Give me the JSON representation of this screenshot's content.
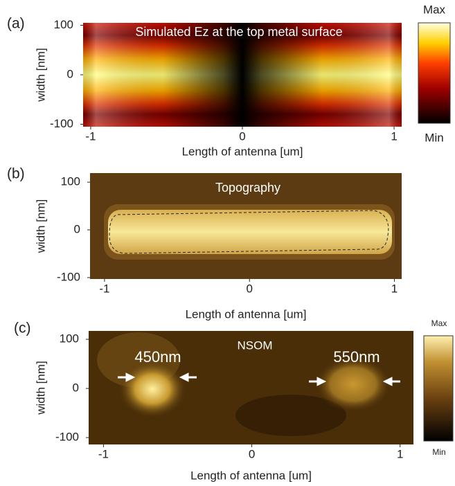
{
  "chart_data": [
    {
      "type": "heatmap",
      "panel_label": "(a)",
      "annotations": [
        "Simulated Ez at the top metal surface"
      ],
      "x_label": "Length of antenna [um]",
      "y_label": "width [nm]",
      "xlim": [
        -1.05,
        1.05
      ],
      "ylim": [
        -105,
        105
      ],
      "xticks": [
        -1,
        0,
        1
      ],
      "yticks": [
        -100,
        0,
        100
      ],
      "colorbar_labels": [
        "Max",
        "Min"
      ]
    },
    {
      "type": "heatmap",
      "panel_label": "(b)",
      "annotations": [
        "Topography"
      ],
      "x_label": "Length of antenna [um]",
      "y_label": "width [nm]",
      "xlim": [
        -1.1,
        1.05
      ],
      "ylim": [
        -103,
        119
      ],
      "xticks": [
        -1,
        0,
        1
      ],
      "yticks": [
        -100,
        0,
        100
      ]
    },
    {
      "type": "heatmap",
      "panel_label": "(c)",
      "annotations": [
        "NSOM",
        "450nm",
        "550nm"
      ],
      "x_label": "Length of antenna [um]",
      "y_label": "width [nm]",
      "xlim": [
        -1.1,
        1.09
      ],
      "ylim": [
        -114,
        117
      ],
      "xticks": [
        -1,
        0,
        1
      ],
      "yticks": [
        -100,
        0,
        100
      ],
      "colorbar_labels": [
        "Max",
        "Min"
      ]
    }
  ]
}
